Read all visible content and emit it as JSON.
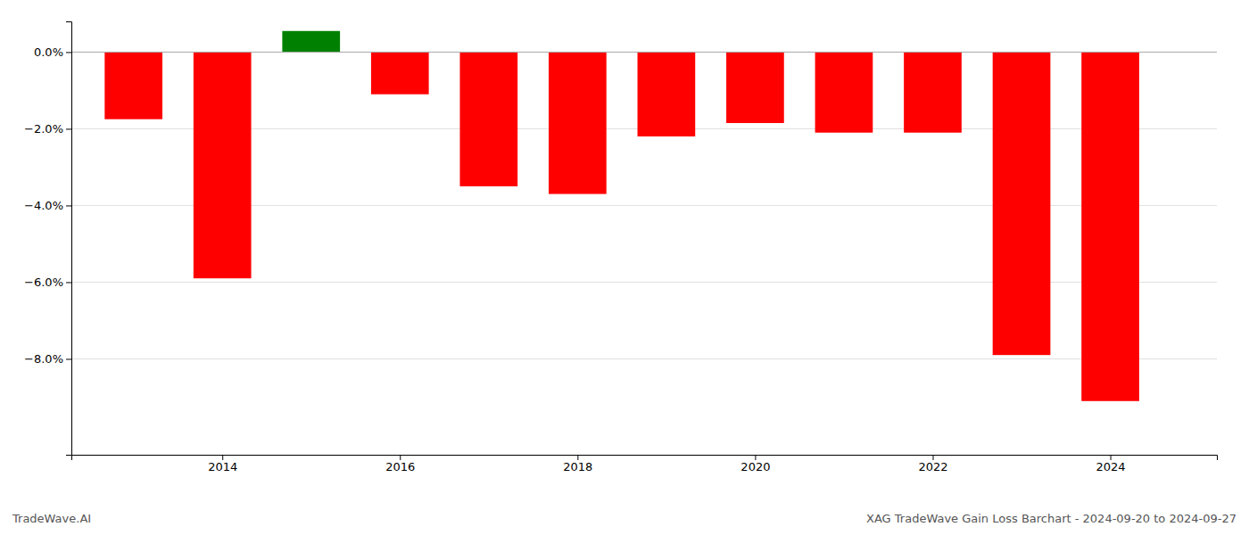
{
  "chart_data": {
    "type": "bar",
    "title": "XAG TradeWave Gain Loss Barchart - 2024-09-20 to 2024-09-27",
    "annotations": [
      "TradeWave.AI"
    ],
    "x": [
      2013,
      2014,
      2015,
      2016,
      2017,
      2018,
      2019,
      2020,
      2021,
      2022,
      2023,
      2024
    ],
    "values": [
      -0.0175,
      -0.059,
      0.0055,
      -0.011,
      -0.035,
      -0.037,
      -0.022,
      -0.0185,
      -0.021,
      -0.021,
      -0.079,
      -0.091
    ],
    "colors": [
      "#ff0000",
      "#ff0000",
      "#008000",
      "#ff0000",
      "#ff0000",
      "#ff0000",
      "#ff0000",
      "#ff0000",
      "#ff0000",
      "#ff0000",
      "#ff0000",
      "#ff0000"
    ],
    "xlim": [
      2012.3,
      2025.2
    ],
    "xticks": [
      2014,
      2016,
      2018,
      2020,
      2022,
      2024
    ],
    "ylim": [
      -0.105,
      0.008
    ],
    "yticks": [
      {
        "value": 0.0,
        "label": "0.0%"
      },
      {
        "value": -0.02,
        "label": "−2.0%"
      },
      {
        "value": -0.04,
        "label": "−4.0%"
      },
      {
        "value": -0.06,
        "label": "−6.0%"
      },
      {
        "value": -0.08,
        "label": "−8.0%"
      }
    ],
    "grid": true
  }
}
